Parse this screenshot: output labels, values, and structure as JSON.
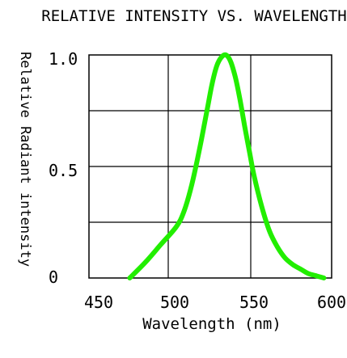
{
  "chart_data": {
    "type": "line",
    "title": "RELATIVE INTENSITY VS. WAVELENGTH",
    "xlabel": "Wavelength (nm)",
    "ylabel": "Relative Radiant intensity",
    "xlim": [
      450,
      600
    ],
    "ylim": [
      0,
      1.0
    ],
    "x_ticks": [
      450,
      500,
      550,
      600
    ],
    "x_tick_labels": [
      "450",
      "500",
      "550",
      "600"
    ],
    "y_ticks": [
      0,
      0.5,
      1.0
    ],
    "y_tick_labels": [
      "0",
      "0.5",
      "1.0"
    ],
    "grid": true,
    "series": [
      {
        "color": "#22ee00",
        "x": [
          470,
          480,
          490,
          500,
          505,
          510,
          515,
          520,
          523,
          526,
          529,
          532,
          535,
          538,
          541,
          544,
          547,
          550,
          555,
          560,
          565,
          570,
          575,
          580,
          585,
          590,
          595
        ],
        "y": [
          0.0,
          0.07,
          0.15,
          0.23,
          0.3,
          0.42,
          0.58,
          0.76,
          0.87,
          0.95,
          0.99,
          1.0,
          0.97,
          0.9,
          0.8,
          0.68,
          0.57,
          0.46,
          0.32,
          0.21,
          0.14,
          0.09,
          0.06,
          0.04,
          0.02,
          0.01,
          0.0
        ]
      }
    ]
  }
}
